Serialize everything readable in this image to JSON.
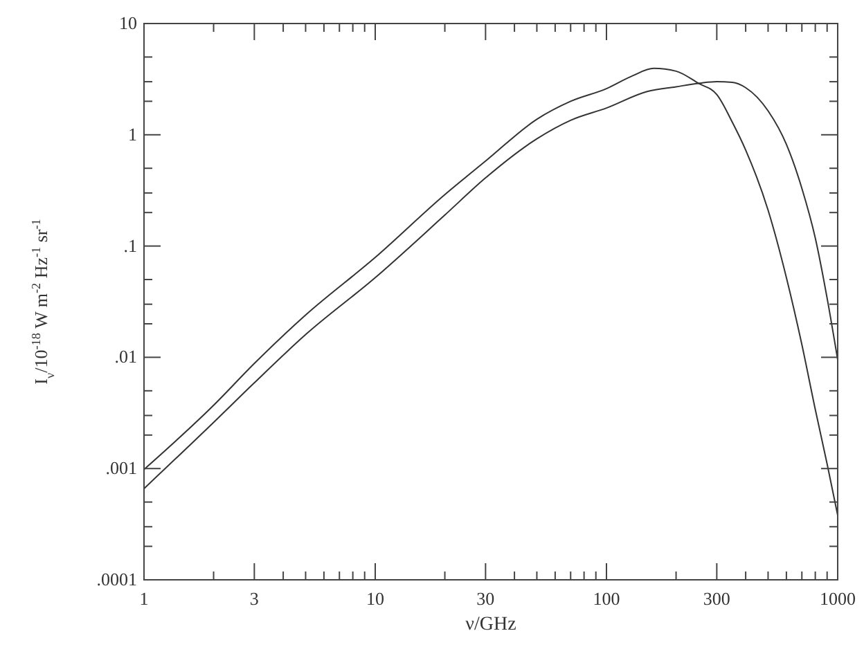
{
  "chart_data": {
    "type": "line",
    "xlabel": "ν/GHz",
    "ylabel": "I$_{ν}$/10$^{-18}$ W m$^{-2}$ Hz$^{-1}$ sr$^{-1}$",
    "log": "xy",
    "grid": false,
    "line_style": "solid",
    "xlim": [
      1,
      1000
    ],
    "ylim": [
      0.0001,
      10
    ],
    "xticks": [
      1,
      {
        "value": 2,
        "label": null
      },
      3,
      {
        "value": 4,
        "label": null
      },
      {
        "value": 5,
        "label": null
      },
      {
        "value": 6,
        "label": null
      },
      {
        "value": 7,
        "label": null
      },
      {
        "value": 8,
        "label": null
      },
      {
        "value": 9,
        "label": null
      },
      10,
      {
        "value": 20,
        "label": null
      },
      30,
      {
        "value": 40,
        "label": null
      },
      {
        "value": 50,
        "label": null
      },
      {
        "value": 60,
        "label": null
      },
      {
        "value": 70,
        "label": null
      },
      {
        "value": 80,
        "label": null
      },
      {
        "value": 90,
        "label": null
      },
      100,
      {
        "value": 200,
        "label": null
      },
      300,
      {
        "value": 400,
        "label": null
      },
      {
        "value": 500,
        "label": null
      },
      {
        "value": 600,
        "label": null
      },
      {
        "value": 700,
        "label": null
      },
      {
        "value": 800,
        "label": null
      },
      {
        "value": 900,
        "label": null
      },
      1000
    ],
    "yticks": [
      {
        "value": 0.0001,
        "label": ".0001"
      },
      {
        "value": 0.0002,
        "label": null
      },
      {
        "value": 0.0003,
        "label": null
      },
      {
        "value": 0.0005,
        "label": null
      },
      {
        "value": 0.001,
        "label": ".001"
      },
      {
        "value": 0.002,
        "label": null
      },
      {
        "value": 0.003,
        "label": null
      },
      {
        "value": 0.005,
        "label": null
      },
      {
        "value": 0.01,
        "label": ".01"
      },
      {
        "value": 0.02,
        "label": null
      },
      {
        "value": 0.03,
        "label": null
      },
      {
        "value": 0.05,
        "label": null
      },
      {
        "value": 0.1,
        "label": ".1"
      },
      {
        "value": 0.2,
        "label": null
      },
      {
        "value": 0.3,
        "label": null
      },
      {
        "value": 0.5,
        "label": null
      },
      1,
      {
        "value": 2,
        "label": null
      },
      {
        "value": 3,
        "label": null
      },
      {
        "value": 5,
        "label": null
      },
      10
    ],
    "series": [
      {
        "color": "#333333",
        "x": [
          1,
          2,
          3,
          5,
          10,
          20,
          30,
          50,
          70,
          100,
          130,
          160,
          200,
          250,
          300,
          350,
          400,
          500,
          600,
          700,
          800,
          900,
          1000
        ],
        "values": [
          0.00098,
          0.0037,
          0.0088,
          0.024,
          0.079,
          0.29,
          0.58,
          1.38,
          2.0,
          2.6,
          3.4,
          3.95,
          3.73,
          2.9,
          2.3,
          1.3,
          0.73,
          0.21,
          0.052,
          0.013,
          0.0034,
          0.0011,
          0.00038
        ]
      },
      {
        "color": "#333333",
        "x": [
          1,
          2,
          3,
          5,
          10,
          20,
          30,
          50,
          70,
          100,
          150,
          200,
          250,
          300,
          350,
          400,
          500,
          600,
          700,
          800,
          900,
          1000
        ],
        "values": [
          0.00066,
          0.0026,
          0.0059,
          0.016,
          0.052,
          0.19,
          0.41,
          0.92,
          1.35,
          1.74,
          2.45,
          2.7,
          2.9,
          3.0,
          2.96,
          2.65,
          1.64,
          0.82,
          0.33,
          0.118,
          0.034,
          0.0095
        ]
      }
    ]
  }
}
